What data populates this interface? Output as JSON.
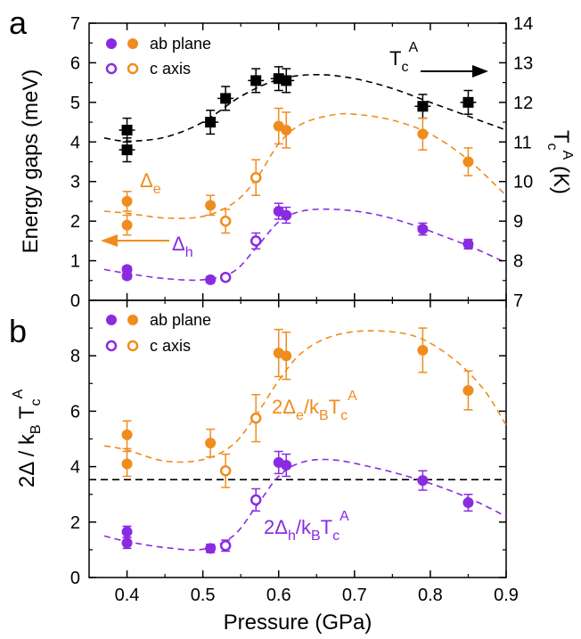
{
  "chart_data": [
    {
      "panel_label": "a",
      "type": "scatter",
      "ylabel": "Energy gaps (meV)",
      "ylabel_right": "T_c^A (K)",
      "ylim": [
        0,
        7
      ],
      "ylim_right": [
        7,
        14
      ],
      "yticks": [
        "0",
        "1",
        "2",
        "3",
        "4",
        "5",
        "6",
        "7"
      ],
      "yticks_right": [
        "7",
        "8",
        "9",
        "10",
        "11",
        "12",
        "13",
        "14"
      ],
      "legend": [
        {
          "marker": "filled",
          "label": "ab  plane"
        },
        {
          "marker": "open",
          "label": "c  axis"
        }
      ],
      "annotations": {
        "tc": "T_c^A",
        "delta_e": "Δ_e",
        "delta_h": "Δ_h"
      },
      "series": [
        {
          "name": "T_c^A",
          "axis": "right",
          "color": "#000000",
          "marker": "square",
          "points": [
            {
              "x": 0.4,
              "y": 11.3,
              "err": 0.3
            },
            {
              "x": 0.4,
              "y": 10.8,
              "err": 0.3
            },
            {
              "x": 0.51,
              "y": 11.5,
              "err": 0.3
            },
            {
              "x": 0.53,
              "y": 12.1,
              "err": 0.3
            },
            {
              "x": 0.57,
              "y": 12.55,
              "err": 0.3
            },
            {
              "x": 0.6,
              "y": 12.6,
              "err": 0.3
            },
            {
              "x": 0.61,
              "y": 12.55,
              "err": 0.3
            },
            {
              "x": 0.79,
              "y": 11.9,
              "err": 0.3
            },
            {
              "x": 0.85,
              "y": 12.0,
              "err": 0.3
            }
          ],
          "fit": [
            [
              0.37,
              4.1
            ],
            [
              0.4,
              4.02
            ],
            [
              0.45,
              4.12
            ],
            [
              0.5,
              4.5
            ],
            [
              0.55,
              5.15
            ],
            [
              0.6,
              5.58
            ],
            [
              0.65,
              5.7
            ],
            [
              0.7,
              5.6
            ],
            [
              0.75,
              5.35
            ],
            [
              0.8,
              5.0
            ],
            [
              0.85,
              4.65
            ],
            [
              0.9,
              4.3
            ]
          ]
        },
        {
          "name": "Δ_e",
          "axis": "left",
          "color": "#f08c1e",
          "points": [
            {
              "x": 0.4,
              "y": 2.5,
              "err": 0.25,
              "open": false
            },
            {
              "x": 0.4,
              "y": 1.9,
              "err": 0.25,
              "open": false
            },
            {
              "x": 0.51,
              "y": 2.4,
              "err": 0.25,
              "open": false
            },
            {
              "x": 0.53,
              "y": 2.0,
              "err": 0.3,
              "open": true
            },
            {
              "x": 0.57,
              "y": 3.1,
              "err": 0.45,
              "open": true
            },
            {
              "x": 0.6,
              "y": 4.4,
              "err": 0.45,
              "open": false
            },
            {
              "x": 0.61,
              "y": 4.3,
              "err": 0.45,
              "open": false
            },
            {
              "x": 0.79,
              "y": 4.2,
              "err": 0.4,
              "open": false
            },
            {
              "x": 0.85,
              "y": 3.5,
              "err": 0.35,
              "open": false
            }
          ],
          "fit": [
            [
              0.37,
              2.25
            ],
            [
              0.4,
              2.2
            ],
            [
              0.45,
              2.08
            ],
            [
              0.5,
              2.12
            ],
            [
              0.54,
              2.45
            ],
            [
              0.57,
              3.05
            ],
            [
              0.6,
              3.95
            ],
            [
              0.63,
              4.45
            ],
            [
              0.67,
              4.68
            ],
            [
              0.7,
              4.7
            ],
            [
              0.75,
              4.55
            ],
            [
              0.8,
              4.2
            ],
            [
              0.85,
              3.55
            ],
            [
              0.9,
              2.65
            ]
          ]
        },
        {
          "name": "Δ_h",
          "axis": "left",
          "color": "#8a2be2",
          "points": [
            {
              "x": 0.4,
              "y": 0.78,
              "err": 0.08,
              "open": false
            },
            {
              "x": 0.4,
              "y": 0.62,
              "err": 0.08,
              "open": false
            },
            {
              "x": 0.51,
              "y": 0.52,
              "err": 0.08,
              "open": false
            },
            {
              "x": 0.53,
              "y": 0.58,
              "err": 0.08,
              "open": true
            },
            {
              "x": 0.57,
              "y": 1.5,
              "err": 0.2,
              "open": true
            },
            {
              "x": 0.6,
              "y": 2.25,
              "err": 0.2,
              "open": false
            },
            {
              "x": 0.61,
              "y": 2.15,
              "err": 0.2,
              "open": false
            },
            {
              "x": 0.79,
              "y": 1.8,
              "err": 0.15,
              "open": false
            },
            {
              "x": 0.85,
              "y": 1.42,
              "err": 0.12,
              "open": false
            }
          ],
          "fit": [
            [
              0.37,
              0.78
            ],
            [
              0.4,
              0.68
            ],
            [
              0.45,
              0.55
            ],
            [
              0.5,
              0.52
            ],
            [
              0.54,
              0.72
            ],
            [
              0.57,
              1.32
            ],
            [
              0.6,
              1.98
            ],
            [
              0.63,
              2.25
            ],
            [
              0.67,
              2.3
            ],
            [
              0.72,
              2.2
            ],
            [
              0.77,
              1.95
            ],
            [
              0.82,
              1.6
            ],
            [
              0.86,
              1.3
            ],
            [
              0.9,
              0.95
            ]
          ]
        }
      ]
    },
    {
      "panel_label": "b",
      "type": "scatter",
      "xlabel": "Pressure (GPa)",
      "ylabel": "2Δ / k_B T_c^A",
      "xlim": [
        0.35,
        0.9
      ],
      "ylim": [
        0,
        10
      ],
      "xticks": [
        "0.4",
        "0.5",
        "0.6",
        "0.7",
        "0.8",
        "0.9"
      ],
      "yticks": [
        "0",
        "2",
        "4",
        "6",
        "8"
      ],
      "reference_line": 3.53,
      "legend": [
        {
          "marker": "filled",
          "label": "ab  plane"
        },
        {
          "marker": "open",
          "label": "c  axis"
        }
      ],
      "annotations": {
        "ratio_e": "2Δ_e/k_BT_c^A",
        "ratio_h": "2Δ_h/k_BT_c^A"
      },
      "series": [
        {
          "name": "2Δ_e/k_BT_c^A",
          "color": "#f08c1e",
          "points": [
            {
              "x": 0.4,
              "y": 5.15,
              "err": 0.5,
              "open": false
            },
            {
              "x": 0.4,
              "y": 4.1,
              "err": 0.45,
              "open": false
            },
            {
              "x": 0.51,
              "y": 4.85,
              "err": 0.5,
              "open": false
            },
            {
              "x": 0.53,
              "y": 3.85,
              "err": 0.6,
              "open": true
            },
            {
              "x": 0.57,
              "y": 5.75,
              "err": 0.85,
              "open": true
            },
            {
              "x": 0.6,
              "y": 8.1,
              "err": 0.85,
              "open": false
            },
            {
              "x": 0.61,
              "y": 8.0,
              "err": 0.85,
              "open": false
            },
            {
              "x": 0.79,
              "y": 8.2,
              "err": 0.8,
              "open": false
            },
            {
              "x": 0.85,
              "y": 6.75,
              "err": 0.7,
              "open": false
            }
          ],
          "fit": [
            [
              0.37,
              4.75
            ],
            [
              0.4,
              4.6
            ],
            [
              0.45,
              4.2
            ],
            [
              0.5,
              4.25
            ],
            [
              0.54,
              4.8
            ],
            [
              0.57,
              5.85
            ],
            [
              0.6,
              7.1
            ],
            [
              0.63,
              8.1
            ],
            [
              0.67,
              8.7
            ],
            [
              0.72,
              8.9
            ],
            [
              0.78,
              8.7
            ],
            [
              0.83,
              7.9
            ],
            [
              0.87,
              6.8
            ],
            [
              0.9,
              5.5
            ]
          ]
        },
        {
          "name": "2Δ_h/k_BT_c^A",
          "color": "#8a2be2",
          "points": [
            {
              "x": 0.4,
              "y": 1.65,
              "err": 0.2,
              "open": false
            },
            {
              "x": 0.4,
              "y": 1.25,
              "err": 0.2,
              "open": false
            },
            {
              "x": 0.51,
              "y": 1.05,
              "err": 0.15,
              "open": false
            },
            {
              "x": 0.53,
              "y": 1.15,
              "err": 0.2,
              "open": true
            },
            {
              "x": 0.57,
              "y": 2.8,
              "err": 0.4,
              "open": true
            },
            {
              "x": 0.6,
              "y": 4.15,
              "err": 0.4,
              "open": false
            },
            {
              "x": 0.61,
              "y": 4.05,
              "err": 0.4,
              "open": false
            },
            {
              "x": 0.79,
              "y": 3.5,
              "err": 0.35,
              "open": false
            },
            {
              "x": 0.85,
              "y": 2.7,
              "err": 0.3,
              "open": false
            }
          ],
          "fit": [
            [
              0.37,
              1.5
            ],
            [
              0.4,
              1.3
            ],
            [
              0.45,
              1.08
            ],
            [
              0.5,
              1.02
            ],
            [
              0.54,
              1.5
            ],
            [
              0.57,
              2.55
            ],
            [
              0.6,
              3.65
            ],
            [
              0.63,
              4.15
            ],
            [
              0.67,
              4.25
            ],
            [
              0.72,
              4.0
            ],
            [
              0.77,
              3.65
            ],
            [
              0.82,
              3.2
            ],
            [
              0.86,
              2.75
            ],
            [
              0.9,
              2.2
            ]
          ]
        }
      ]
    }
  ]
}
